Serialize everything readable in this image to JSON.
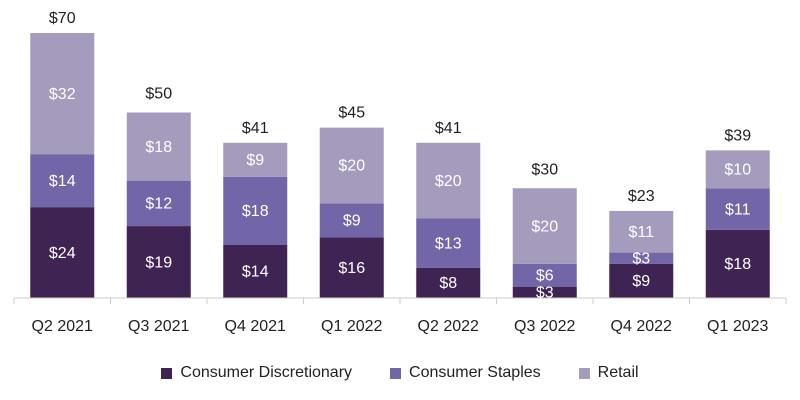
{
  "chart_data": {
    "type": "bar",
    "stacked": true,
    "categories": [
      "Q2 2021",
      "Q3 2021",
      "Q4 2021",
      "Q1 2022",
      "Q2 2022",
      "Q3 2022",
      "Q4 2022",
      "Q1 2023"
    ],
    "series": [
      {
        "name": "Consumer Discretionary",
        "color": "#3f2352",
        "values": [
          24,
          19,
          14,
          16,
          8,
          3,
          9,
          18
        ]
      },
      {
        "name": "Consumer Staples",
        "color": "#7266a8",
        "values": [
          14,
          12,
          18,
          9,
          13,
          6,
          3,
          11
        ]
      },
      {
        "name": "Retail",
        "color": "#a59bbd",
        "values": [
          32,
          18,
          9,
          20,
          20,
          20,
          11,
          10
        ]
      }
    ],
    "totals": [
      70,
      50,
      41,
      45,
      41,
      30,
      23,
      39
    ],
    "value_prefix": "$",
    "ylim": [
      0,
      70
    ],
    "grid": false,
    "legend_position": "bottom"
  }
}
